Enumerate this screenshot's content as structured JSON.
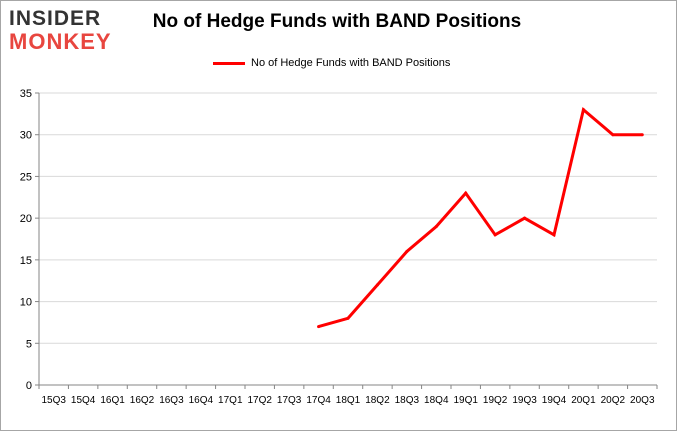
{
  "logo": {
    "top": "INSIDER",
    "bottom": "MONKEY"
  },
  "chart_data": {
    "type": "line",
    "title": "No of Hedge Funds with BAND Positions",
    "xlabel": "",
    "ylabel": "",
    "categories": [
      "15Q3",
      "15Q4",
      "16Q1",
      "16Q2",
      "16Q3",
      "16Q4",
      "17Q1",
      "17Q2",
      "17Q3",
      "17Q4",
      "18Q1",
      "18Q2",
      "18Q3",
      "18Q4",
      "19Q1",
      "19Q2",
      "19Q3",
      "19Q4",
      "20Q1",
      "20Q2",
      "20Q3"
    ],
    "series": [
      {
        "name": "No of Hedge Funds with BAND Positions",
        "color": "#ff0000",
        "values": [
          null,
          null,
          null,
          null,
          null,
          null,
          null,
          null,
          null,
          7,
          8,
          12,
          16,
          19,
          23,
          18,
          20,
          18,
          33,
          30,
          30
        ]
      }
    ],
    "ylim": [
      0,
      35
    ],
    "yticks": [
      0,
      5,
      10,
      15,
      20,
      25,
      30,
      35
    ],
    "grid": true,
    "legend_position": "top-center"
  }
}
